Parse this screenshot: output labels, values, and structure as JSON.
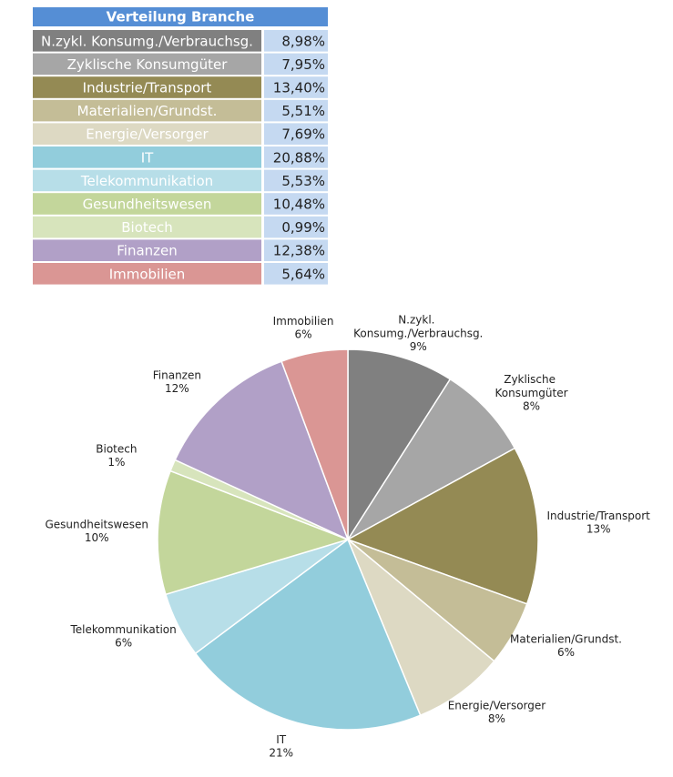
{
  "table": {
    "title": "Verteilung Branche",
    "rows": [
      [
        "N.zykl. Konsumg./Verbrauchsg.",
        "8,98%"
      ],
      [
        "Zyklische Konsumgüter",
        "7,95%"
      ],
      [
        "Industrie/Transport",
        "13,40%"
      ],
      [
        "Materialien/Grundst.",
        "5,51%"
      ],
      [
        "Energie/Versorger",
        "7,69%"
      ],
      [
        "IT",
        "20,88%"
      ],
      [
        "Telekommunikation",
        "5,53%"
      ],
      [
        "Gesundheitswesen",
        "10,48%"
      ],
      [
        "Biotech",
        "0,99%"
      ],
      [
        "Finanzen",
        "12,38%"
      ],
      [
        "Immobilien",
        "5,64%"
      ]
    ]
  },
  "chart_data": {
    "type": "pie",
    "categories": [
      "N.zykl. Konsumg./Verbrauchsg.",
      "Zyklische Konsumgüter",
      "Industrie/Transport",
      "Materialien/Grundst.",
      "Energie/Versorger",
      "IT",
      "Telekommunikation",
      "Gesundheitswesen",
      "Biotech",
      "Finanzen",
      "Immobilien"
    ],
    "values": [
      8.98,
      7.95,
      13.4,
      5.51,
      7.69,
      20.88,
      5.53,
      10.48,
      0.99,
      12.38,
      5.64
    ],
    "value_labels": [
      "9%",
      "8%",
      "13%",
      "6%",
      "8%",
      "21%",
      "6%",
      "10%",
      "1%",
      "12%",
      "6%"
    ],
    "colors": [
      "#808080",
      "#a6a6a6",
      "#948a54",
      "#c4bd97",
      "#ddd9c3",
      "#92cddc",
      "#b7dee8",
      "#c3d69b",
      "#d7e4bc",
      "#b1a0c7",
      "#da9694"
    ]
  }
}
